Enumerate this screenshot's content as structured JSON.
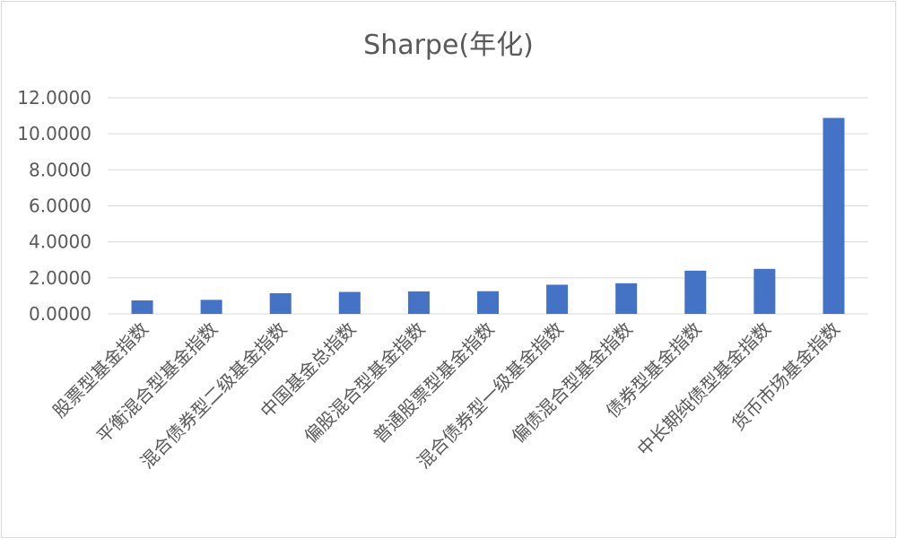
{
  "chart_data": {
    "type": "bar",
    "title": "Sharpe(年化)",
    "xlabel": "",
    "ylabel": "",
    "ylim": [
      0,
      12
    ],
    "yticks": [
      0,
      2,
      4,
      6,
      8,
      10,
      12
    ],
    "ytick_labels": [
      "0.0000",
      "2.0000",
      "4.0000",
      "6.0000",
      "8.0000",
      "10.0000",
      "12.0000"
    ],
    "grid": true,
    "legend": "none",
    "bar_color": "#4472c4",
    "grid_color": "#d9d9d9",
    "categories": [
      "股票型基金指数",
      "平衡混合型基金指数",
      "混合债券型二级基金指数",
      "中国基金总指数",
      "偏股混合型基金指数",
      "普通股票型基金指数",
      "混合债券型一级基金指数",
      "偏债混合型基金指数",
      "债券型基金指数",
      "中长期纯债型基金指数",
      "货币市场基金指数"
    ],
    "values": [
      0.75,
      0.78,
      1.15,
      1.22,
      1.25,
      1.26,
      1.62,
      1.7,
      2.4,
      2.5,
      10.88
    ]
  }
}
